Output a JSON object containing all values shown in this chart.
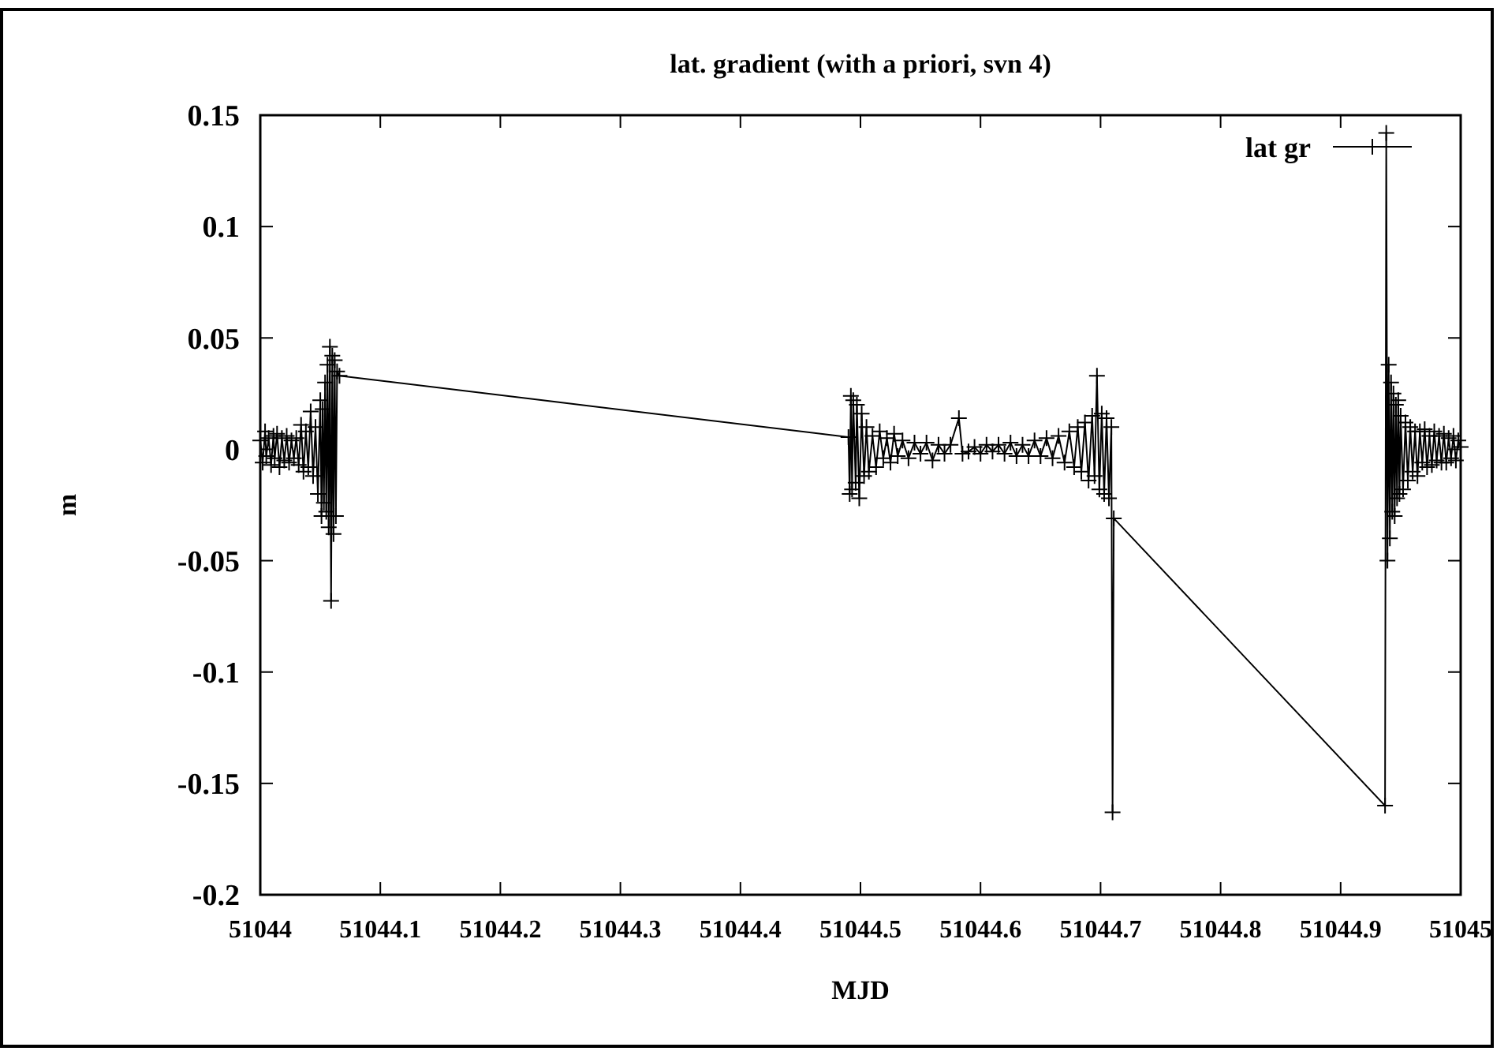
{
  "chart_data": {
    "type": "line",
    "title": "lat. gradient (with a priori, svn 4)",
    "xlabel": "MJD",
    "ylabel": "m",
    "xlim": [
      51044,
      51045
    ],
    "xticks": [
      51044,
      51044.1,
      51044.2,
      51044.3,
      51044.4,
      51044.5,
      51044.6,
      51044.7,
      51044.8,
      51044.9,
      51045
    ],
    "ylim": [
      -0.2,
      0.15
    ],
    "yticks": [
      -0.2,
      -0.15,
      -0.1,
      -0.05,
      0,
      0.05,
      0.1,
      0.15
    ],
    "grid": false,
    "legend": "top right",
    "marker": "cross",
    "line_style": "solid",
    "series": [
      {
        "name": "lat gr",
        "color": "#000000",
        "x": [
          51044.0,
          51044.002,
          51044.004,
          51044.005,
          51044.007,
          51044.009,
          51044.011,
          51044.012,
          51044.014,
          51044.016,
          51044.018,
          51044.02,
          51044.022,
          51044.024,
          51044.026,
          51044.028,
          51044.03,
          51044.032,
          51044.034,
          51044.036,
          51044.038,
          51044.04,
          51044.042,
          51044.044,
          51044.046,
          51044.048,
          51044.05,
          51044.051,
          51044.052,
          51044.053,
          51044.054,
          51044.055,
          51044.056,
          51044.057,
          51044.058,
          51044.059,
          51044.06,
          51044.061,
          51044.062,
          51044.063,
          51044.064,
          51044.066,
          51044.49,
          51044.491,
          51044.492,
          51044.493,
          51044.494,
          51044.496,
          51044.497,
          51044.499,
          51044.501,
          51044.503,
          51044.505,
          51044.507,
          51044.51,
          51044.513,
          51044.516,
          51044.519,
          51044.522,
          51044.525,
          51044.528,
          51044.531,
          51044.535,
          51044.54,
          51044.545,
          51044.55,
          51044.555,
          51044.56,
          51044.565,
          51044.57,
          51044.575,
          51044.582,
          51044.585,
          51044.59,
          51044.595,
          51044.6,
          51044.605,
          51044.61,
          51044.615,
          51044.62,
          51044.625,
          51044.63,
          51044.635,
          51044.64,
          51044.645,
          51044.65,
          51044.655,
          51044.66,
          51044.665,
          51044.67,
          51044.674,
          51044.678,
          51044.681,
          51044.684,
          51044.687,
          51044.69,
          51044.693,
          51044.695,
          51044.697,
          51044.699,
          51044.701,
          51044.703,
          51044.705,
          51044.707,
          51044.709,
          51044.71,
          51044.711,
          51044.937,
          51044.938,
          51044.939,
          51044.94,
          51044.941,
          51044.942,
          51044.943,
          51044.944,
          51044.945,
          51044.946,
          51044.947,
          51044.948,
          51044.949,
          51044.95,
          51044.952,
          51044.954,
          51044.956,
          51044.958,
          51044.96,
          51044.962,
          51044.964,
          51044.966,
          51044.968,
          51044.97,
          51044.972,
          51044.974,
          51044.976,
          51044.978,
          51044.98,
          51044.982,
          51044.984,
          51044.986,
          51044.988,
          51044.99,
          51044.992,
          51044.994,
          51044.996,
          51044.998,
          51045.0
        ],
        "values": [
          0.004,
          -0.006,
          0.008,
          -0.003,
          0.005,
          -0.007,
          0.006,
          -0.004,
          0.007,
          -0.008,
          0.005,
          -0.005,
          0.006,
          -0.006,
          0.004,
          -0.004,
          0.005,
          -0.007,
          0.011,
          -0.01,
          0.008,
          -0.008,
          0.017,
          -0.012,
          0.01,
          -0.02,
          0.022,
          -0.03,
          0.018,
          -0.024,
          0.03,
          -0.028,
          0.038,
          -0.035,
          0.046,
          -0.068,
          0.042,
          -0.038,
          0.04,
          -0.03,
          0.035,
          0.033,
          0.0055,
          -0.02,
          0.024,
          -0.018,
          0.022,
          -0.015,
          0.02,
          -0.022,
          0.016,
          -0.012,
          0.01,
          -0.01,
          0.006,
          -0.008,
          0.008,
          -0.004,
          0.005,
          -0.006,
          0.007,
          -0.003,
          0.004,
          -0.004,
          0.003,
          -0.002,
          0.003,
          -0.005,
          0.002,
          -0.002,
          0.002,
          0.014,
          -0.002,
          -0.001,
          0.001,
          -0.002,
          0.002,
          -0.001,
          0.002,
          -0.002,
          0.003,
          -0.003,
          0.002,
          -0.003,
          0.004,
          -0.003,
          0.005,
          -0.004,
          0.006,
          -0.006,
          0.008,
          -0.008,
          0.01,
          -0.01,
          0.012,
          -0.014,
          0.015,
          -0.012,
          0.033,
          -0.018,
          0.016,
          -0.02,
          0.014,
          -0.022,
          0.01,
          -0.163,
          -0.031,
          -0.16,
          0.142,
          -0.05,
          0.038,
          -0.04,
          0.03,
          -0.028,
          0.025,
          -0.03,
          0.02,
          -0.022,
          0.022,
          -0.02,
          0.015,
          -0.018,
          0.012,
          -0.014,
          0.01,
          -0.01,
          0.008,
          -0.012,
          0.008,
          -0.006,
          0.009,
          -0.008,
          0.006,
          -0.007,
          0.008,
          -0.005,
          0.006,
          -0.006,
          0.007,
          -0.006,
          0.005,
          -0.004,
          0.006,
          -0.005,
          0.004,
          0.001
        ]
      }
    ]
  }
}
